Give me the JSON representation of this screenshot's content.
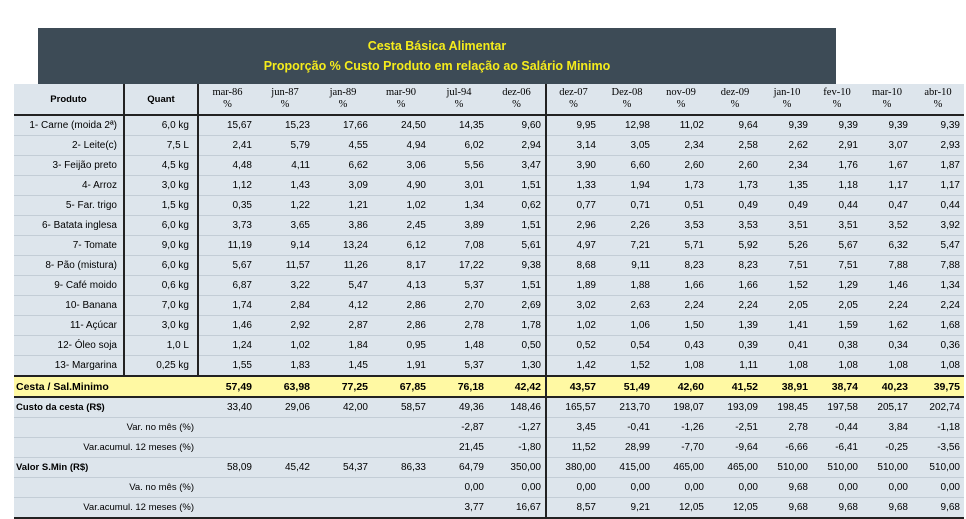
{
  "title": {
    "line1": "Cesta Básica Alimentar",
    "line2": "Proporção % Custo Produto em relação ao Salário Minimo"
  },
  "headers": {
    "produto": "Produto",
    "quant": "Quant",
    "unit": "%",
    "dates": [
      "mar-86",
      "jun-87",
      "jan-89",
      "mar-90",
      "jul-94",
      "dez-06",
      "dez-07",
      "Dez-08",
      "nov-09",
      "dez-09",
      "jan-10",
      "fev-10",
      "mar-10",
      "abr-10"
    ]
  },
  "products": [
    {
      "name": "1- Carne (moida 2ª)",
      "qty": "6,0 kg",
      "values": [
        "15,67",
        "15,23",
        "17,66",
        "24,50",
        "14,35",
        "9,60",
        "9,95",
        "12,98",
        "11,02",
        "9,64",
        "9,39",
        "9,39",
        "9,39",
        "9,39"
      ]
    },
    {
      "name": "2- Leite(c)",
      "qty": "7,5 L",
      "values": [
        "2,41",
        "5,79",
        "4,55",
        "4,94",
        "6,02",
        "2,94",
        "3,14",
        "3,05",
        "2,34",
        "2,58",
        "2,62",
        "2,91",
        "3,07",
        "2,93"
      ]
    },
    {
      "name": "3- Feijão preto",
      "qty": "4,5 kg",
      "values": [
        "4,48",
        "4,11",
        "6,62",
        "3,06",
        "5,56",
        "3,47",
        "3,90",
        "6,60",
        "2,60",
        "2,60",
        "2,34",
        "1,76",
        "1,67",
        "1,87"
      ]
    },
    {
      "name": "4- Arroz",
      "qty": "3,0 kg",
      "values": [
        "1,12",
        "1,43",
        "3,09",
        "4,90",
        "3,01",
        "1,51",
        "1,33",
        "1,94",
        "1,73",
        "1,73",
        "1,35",
        "1,18",
        "1,17",
        "1,17"
      ]
    },
    {
      "name": "5- Far. trigo",
      "qty": "1,5 kg",
      "values": [
        "0,35",
        "1,22",
        "1,21",
        "1,02",
        "1,34",
        "0,62",
        "0,77",
        "0,71",
        "0,51",
        "0,49",
        "0,49",
        "0,44",
        "0,47",
        "0,44"
      ]
    },
    {
      "name": "6- Batata inglesa",
      "qty": "6,0 kg",
      "values": [
        "3,73",
        "3,65",
        "3,86",
        "2,45",
        "3,89",
        "1,51",
        "2,96",
        "2,26",
        "3,53",
        "3,53",
        "3,51",
        "3,51",
        "3,52",
        "3,92"
      ]
    },
    {
      "name": "7- Tomate",
      "qty": "9,0 kg",
      "values": [
        "11,19",
        "9,14",
        "13,24",
        "6,12",
        "7,08",
        "5,61",
        "4,97",
        "7,21",
        "5,71",
        "5,92",
        "5,26",
        "5,67",
        "6,32",
        "5,47"
      ]
    },
    {
      "name": "8- Pão (mistura)",
      "qty": "6,0 kg",
      "values": [
        "5,67",
        "11,57",
        "11,26",
        "8,17",
        "17,22",
        "9,38",
        "8,68",
        "9,11",
        "8,23",
        "8,23",
        "7,51",
        "7,51",
        "7,88",
        "7,88"
      ]
    },
    {
      "name": "9- Café moido",
      "qty": "0,6 kg",
      "values": [
        "6,87",
        "3,22",
        "5,47",
        "4,13",
        "5,37",
        "1,51",
        "1,89",
        "1,88",
        "1,66",
        "1,66",
        "1,52",
        "1,29",
        "1,46",
        "1,34"
      ]
    },
    {
      "name": "10- Banana",
      "qty": "7,0 kg",
      "values": [
        "1,74",
        "2,84",
        "4,12",
        "2,86",
        "2,70",
        "2,69",
        "3,02",
        "2,63",
        "2,24",
        "2,24",
        "2,05",
        "2,05",
        "2,24",
        "2,24"
      ]
    },
    {
      "name": "11- Açúcar",
      "qty": "3,0 kg",
      "values": [
        "1,46",
        "2,92",
        "2,87",
        "2,86",
        "2,78",
        "1,78",
        "1,02",
        "1,06",
        "1,50",
        "1,39",
        "1,41",
        "1,59",
        "1,62",
        "1,68"
      ]
    },
    {
      "name": "12- Óleo soja",
      "qty": "1,0 L",
      "values": [
        "1,24",
        "1,02",
        "1,84",
        "0,95",
        "1,48",
        "0,50",
        "0,52",
        "0,54",
        "0,43",
        "0,39",
        "0,41",
        "0,38",
        "0,34",
        "0,36"
      ]
    },
    {
      "name": "13- Margarina",
      "qty": "0,25 kg",
      "values": [
        "1,55",
        "1,83",
        "1,45",
        "1,91",
        "5,37",
        "1,30",
        "1,42",
        "1,52",
        "1,08",
        "1,11",
        "1,08",
        "1,08",
        "1,08",
        "1,08"
      ]
    }
  ],
  "summary": [
    {
      "key": "cesta",
      "label": "Cesta / Sal.Minimo",
      "values": [
        "57,49",
        "63,98",
        "77,25",
        "67,85",
        "76,18",
        "42,42",
        "43,57",
        "51,49",
        "42,60",
        "41,52",
        "38,91",
        "38,74",
        "40,23",
        "39,75"
      ]
    },
    {
      "key": "custo",
      "label": "Custo da cesta (R$)",
      "values": [
        "33,40",
        "29,06",
        "42,00",
        "58,57",
        "49,36",
        "148,46",
        "165,57",
        "213,70",
        "198,07",
        "193,09",
        "198,45",
        "197,58",
        "205,17",
        "202,74"
      ]
    },
    {
      "key": "var-mes",
      "label": "Var. no mês (%)",
      "values": [
        "",
        "",
        "",
        "",
        "-2,87",
        "-1,27",
        "3,45",
        "-0,41",
        "-1,26",
        "-2,51",
        "2,78",
        "-0,44",
        "3,84",
        "-1,18"
      ]
    },
    {
      "key": "var-acum",
      "label": "Var.acumul. 12 meses (%)",
      "values": [
        "",
        "",
        "",
        "",
        "21,45",
        "-1,80",
        "11,52",
        "28,99",
        "-7,70",
        "-9,64",
        "-6,66",
        "-6,41",
        "-0,25",
        "-3,56"
      ]
    },
    {
      "key": "valor",
      "label": "Valor S.Min (R$)",
      "values": [
        "58,09",
        "45,42",
        "54,37",
        "86,33",
        "64,79",
        "350,00",
        "380,00",
        "415,00",
        "465,00",
        "465,00",
        "510,00",
        "510,00",
        "510,00",
        "510,00"
      ]
    },
    {
      "key": "va-mes",
      "label": "Va. no mês (%)",
      "values": [
        "",
        "",
        "",
        "",
        "0,00",
        "0,00",
        "0,00",
        "0,00",
        "0,00",
        "0,00",
        "9,68",
        "0,00",
        "0,00",
        "0,00"
      ]
    },
    {
      "key": "va-acum",
      "label": "Var.acumul. 12 meses (%)",
      "values": [
        "",
        "",
        "",
        "",
        "3,77",
        "16,67",
        "8,57",
        "9,21",
        "12,05",
        "12,05",
        "9,68",
        "9,68",
        "9,68",
        "9,68"
      ]
    }
  ]
}
